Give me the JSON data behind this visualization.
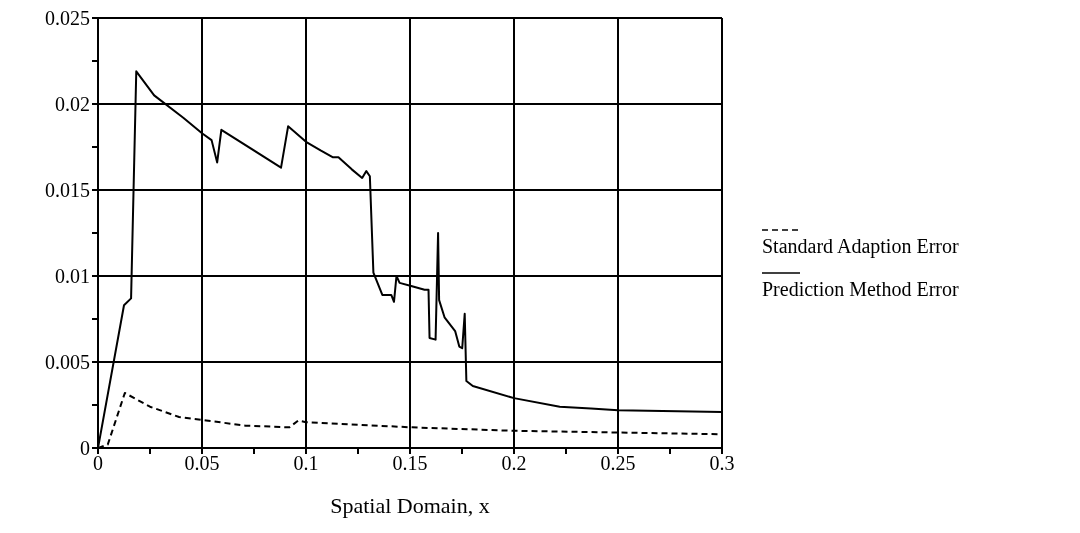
{
  "chart_data": {
    "type": "line",
    "xlabel": "Spatial Domain, x",
    "xlim": [
      0,
      0.3
    ],
    "xticks": [
      0,
      {
        "value": 0.025,
        "label": null
      },
      0.05,
      {
        "value": 0.075,
        "label": null
      },
      0.1,
      {
        "value": 0.125,
        "label": null
      },
      0.15,
      {
        "value": 0.175,
        "label": null
      },
      0.2,
      {
        "value": 0.225,
        "label": null
      },
      0.25,
      {
        "value": 0.275,
        "label": null
      },
      0.3
    ],
    "ylim": [
      0,
      0.025
    ],
    "yticks": [
      0,
      {
        "value": 0.0025,
        "label": null
      },
      0.005,
      {
        "value": 0.0075,
        "label": null
      },
      0.01,
      {
        "value": 0.0125,
        "label": null
      },
      0.015,
      {
        "value": 0.0175,
        "label": null
      },
      0.02,
      {
        "value": 0.0225,
        "label": null
      },
      0.025
    ],
    "grid": true,
    "legend": "right",
    "marker": "none",
    "series": [
      {
        "name": "Standard Adaption Error",
        "color": "#000000",
        "line_style": "dashed",
        "x": [
          0,
          0.0047,
          0.0129,
          0.025,
          0.039,
          0.052,
          0.071,
          0.092,
          0.0963,
          0.1,
          0.151,
          0.2,
          0.3
        ],
        "values": [
          0,
          0.0002,
          0.0032,
          0.0024,
          0.0018,
          0.0016,
          0.0013,
          0.0012,
          0.0016,
          0.0015,
          0.0012,
          0.001,
          0.0008
        ]
      },
      {
        "name": "Prediction Method Error",
        "color": "#000000",
        "line_style": "solid",
        "x": [
          0,
          0.0125,
          0.0159,
          0.0184,
          0.027,
          0.041,
          0.05,
          0.0546,
          0.0573,
          0.0593,
          0.088,
          0.0914,
          0.1,
          0.107,
          0.113,
          0.1156,
          0.122,
          0.127,
          0.129,
          0.1307,
          0.1324,
          0.1367,
          0.141,
          0.1423,
          0.1435,
          0.145,
          0.151,
          0.157,
          0.1589,
          0.1594,
          0.1623,
          0.1635,
          0.164,
          0.1666,
          0.1717,
          0.1737,
          0.1751,
          0.1763,
          0.1771,
          0.1802,
          0.2,
          0.222,
          0.237,
          0.25,
          0.3
        ],
        "values": [
          0,
          0.0083,
          0.0087,
          0.0219,
          0.0205,
          0.0192,
          0.0183,
          0.0179,
          0.0166,
          0.0185,
          0.0163,
          0.0187,
          0.0178,
          0.0173,
          0.0169,
          0.0169,
          0.0162,
          0.0157,
          0.0161,
          0.0158,
          0.0102,
          0.0089,
          0.0089,
          0.0085,
          0.01,
          0.0096,
          0.0094,
          0.0092,
          0.0092,
          0.0064,
          0.0063,
          0.0125,
          0.0086,
          0.0076,
          0.0068,
          0.0059,
          0.0058,
          0.0078,
          0.0039,
          0.0036,
          0.0029,
          0.0024,
          0.0023,
          0.0022,
          0.0021
        ]
      }
    ]
  }
}
